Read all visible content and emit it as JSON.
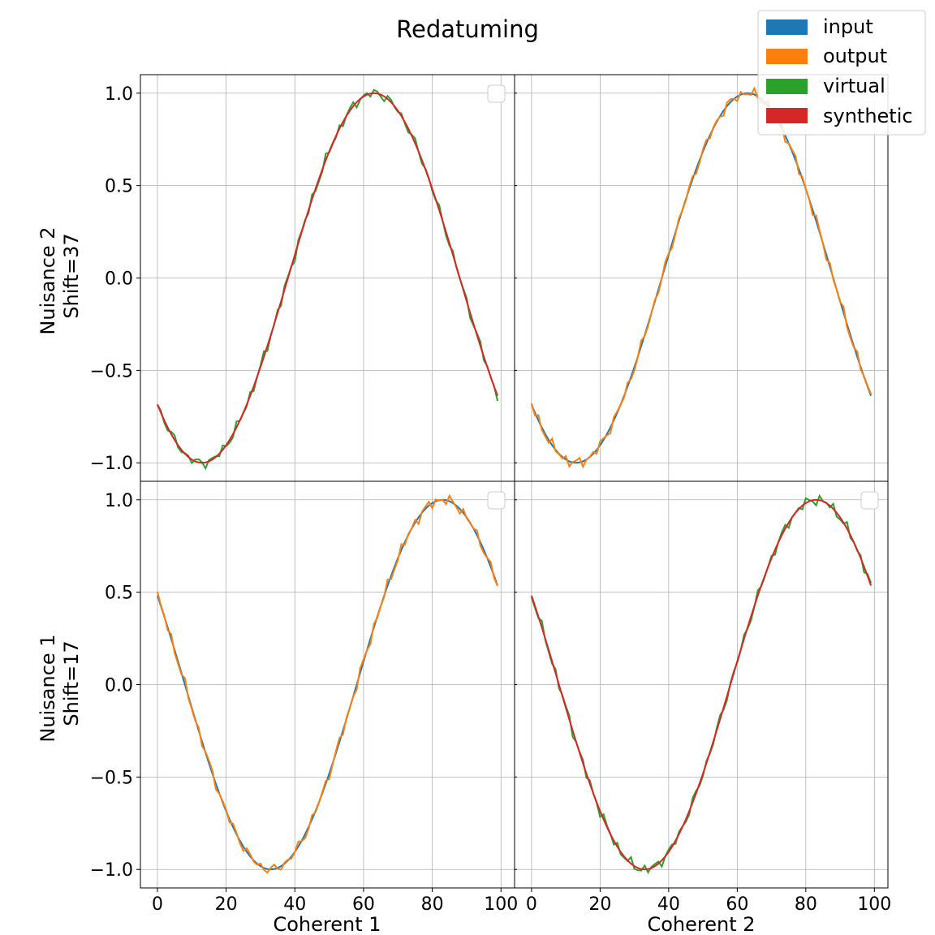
{
  "figure": {
    "title": "Redatuming",
    "col_labels": [
      "Coherent 1",
      "Coherent 2"
    ],
    "row_labels": [
      {
        "line1": "Nuisance 2",
        "line2": "Shift=37"
      },
      {
        "line1": "Nuisance 1",
        "line2": "Shift=17"
      }
    ]
  },
  "legend": {
    "placement": "top-right",
    "items": [
      {
        "label": "input",
        "color": "#1f77b4"
      },
      {
        "label": "output",
        "color": "#ff7f0e"
      },
      {
        "label": "virtual",
        "color": "#2ca02c"
      },
      {
        "label": "synthetic",
        "color": "#d62728"
      }
    ]
  },
  "chart_data": [
    {
      "type": "line",
      "panel": "row 1, column 1",
      "xlabel": "",
      "ylabel": "Nuisance 2 Shift=37",
      "xlim": [
        -4.95,
        103.95
      ],
      "ylim": [
        -1.1,
        1.1
      ],
      "xticks": [
        0,
        20,
        40,
        60,
        80,
        100
      ],
      "yticks": [
        -1.0,
        -0.5,
        0.0,
        0.5,
        1.0
      ],
      "grid": true,
      "series": [
        {
          "name": "virtual",
          "color": "#2ca02c",
          "function": "-cos(2*pi*(x-13)/100) with ripple",
          "x": [
            0,
            99
          ]
        },
        {
          "name": "synthetic",
          "color": "#d62728",
          "function": "-cos(2*pi*(x-13)/100)",
          "x": [
            0,
            99
          ]
        }
      ]
    },
    {
      "type": "line",
      "panel": "row 1, column 2",
      "xlabel": "",
      "ylabel": "",
      "xlim": [
        -4.95,
        103.95
      ],
      "ylim": [
        -1.1,
        1.1
      ],
      "grid": true,
      "series": [
        {
          "name": "input",
          "color": "#1f77b4",
          "function": "-cos(2*pi*(x-13)/100)",
          "x": [
            0,
            99
          ]
        },
        {
          "name": "output",
          "color": "#ff7f0e",
          "function": "-cos(2*pi*(x-13)/100) with ripple",
          "x": [
            0,
            99
          ]
        }
      ]
    },
    {
      "type": "line",
      "panel": "row 2, column 1",
      "xlabel": "Coherent 1",
      "ylabel": "Nuisance 1 Shift=17",
      "xlim": [
        -4.95,
        103.95
      ],
      "ylim": [
        -1.1,
        1.1
      ],
      "xticks": [
        0,
        20,
        40,
        60,
        80,
        100
      ],
      "yticks": [
        -1.0,
        -0.5,
        0.0,
        0.5,
        1.0
      ],
      "grid": true,
      "series": [
        {
          "name": "input",
          "color": "#1f77b4",
          "function": "-cos(2*pi*(x-33)/100)",
          "x": [
            0,
            99
          ]
        },
        {
          "name": "output",
          "color": "#ff7f0e",
          "function": "-cos(2*pi*(x-33)/100) with ripple",
          "x": [
            0,
            99
          ]
        }
      ]
    },
    {
      "type": "line",
      "panel": "row 2, column 2",
      "xlabel": "Coherent 2",
      "ylabel": "",
      "xlim": [
        -4.95,
        103.95
      ],
      "ylim": [
        -1.1,
        1.1
      ],
      "xticks": [
        0,
        20,
        40,
        60,
        80,
        100
      ],
      "grid": true,
      "series": [
        {
          "name": "virtual",
          "color": "#2ca02c",
          "function": "-cos(2*pi*(x-33)/100) with ripple",
          "x": [
            0,
            99
          ]
        },
        {
          "name": "synthetic",
          "color": "#d62728",
          "function": "-cos(2*pi*(x-33)/100)",
          "x": [
            0,
            99
          ]
        }
      ]
    }
  ]
}
